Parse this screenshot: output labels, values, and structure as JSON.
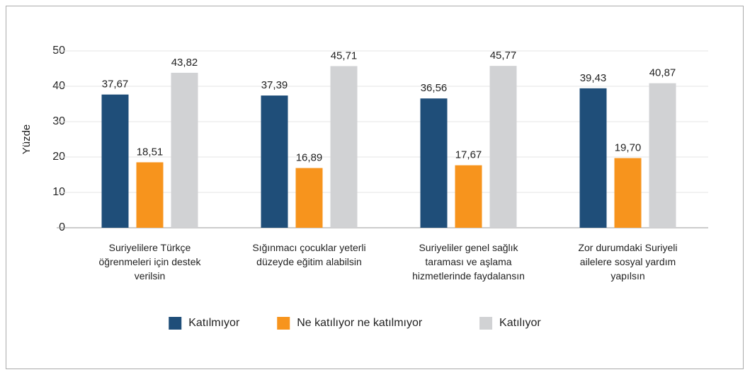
{
  "chart_data": {
    "type": "bar",
    "categories": [
      "Suriyelilere Türkçe öğrenmeleri için destek verilsin",
      "Sığınmacı çocuklar yeterli düzeyde eğitim alabilsin",
      "Suriyeliler genel sağlık taraması ve aşlama hizmetlerinde faydalansın",
      "Zor durumdaki Suriyeli ailelere sosyal yardım yapılsın"
    ],
    "series": [
      {
        "name": "Katılmıyor",
        "color": "#1f4e79",
        "values": [
          37.67,
          37.39,
          36.56,
          39.43
        ],
        "value_labels": [
          "37,67",
          "37,39",
          "36,56",
          "39,43"
        ]
      },
      {
        "name": "Ne katılıyor ne katılmıyor",
        "color": "#f7941d",
        "values": [
          18.51,
          16.89,
          17.67,
          19.7
        ],
        "value_labels": [
          "18,51",
          "16,89",
          "17,67",
          "19,70"
        ]
      },
      {
        "name": "Katılıyor",
        "color": "#d1d2d4",
        "values": [
          43.82,
          45.71,
          45.77,
          40.87
        ],
        "value_labels": [
          "43,82",
          "45,71",
          "45,77",
          "40,87"
        ]
      }
    ],
    "ylabel": "Yüzde",
    "ylim": [
      0,
      50
    ],
    "yticks": [
      0,
      10,
      20,
      30,
      40,
      50
    ],
    "grid": true,
    "legend": "bottom"
  }
}
